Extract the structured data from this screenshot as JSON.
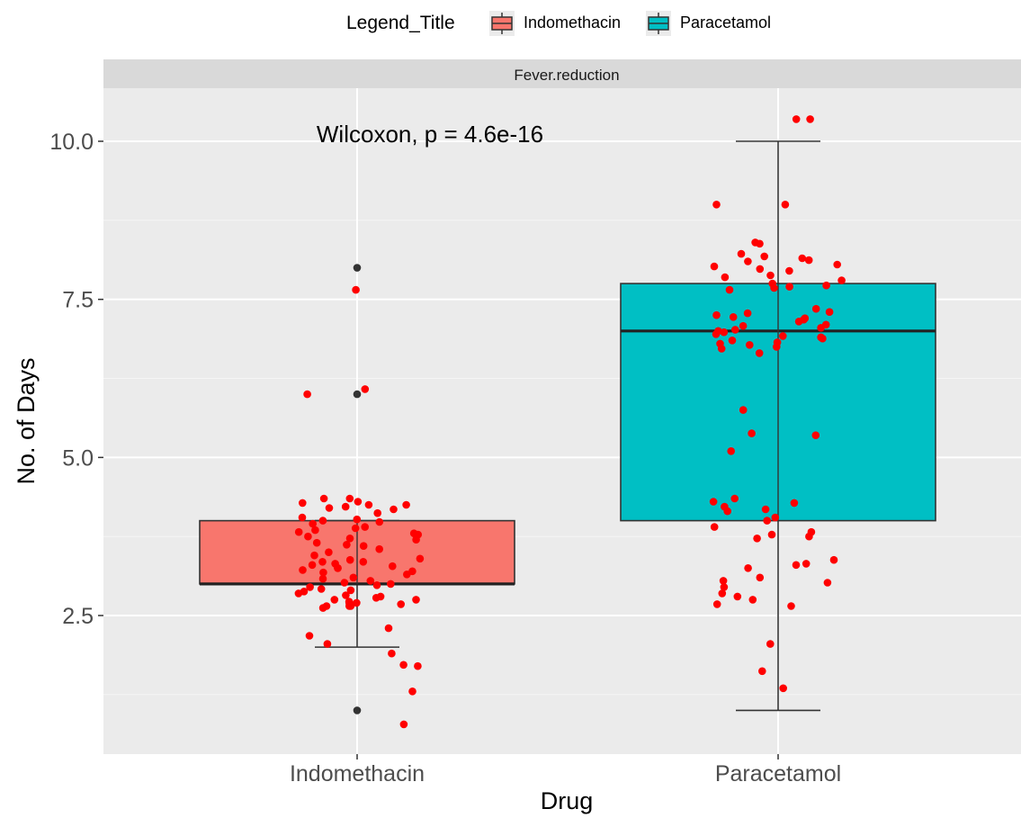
{
  "legend": {
    "title": "Legend_Title",
    "items": [
      {
        "label": "Indomethacin",
        "color": "#F8766D"
      },
      {
        "label": "Paracetamol",
        "color": "#00BFC4"
      }
    ]
  },
  "facet": {
    "label": "Fever.reduction"
  },
  "annotation": {
    "text": "Wilcoxon, p = 4.6e-16"
  },
  "chart_data": {
    "type": "box",
    "title": "",
    "facet": "Fever.reduction",
    "xlabel": "Drug",
    "ylabel": "No. of Days",
    "categories": [
      "Indomethacin",
      "Paracetamol"
    ],
    "ylim": [
      0.6,
      10.8
    ],
    "yticks": [
      2.5,
      5.0,
      7.5,
      10.0
    ],
    "ytick_labels": [
      "2.5",
      "5.0",
      "7.5",
      "10.0"
    ],
    "grid": true,
    "legend_position": "top",
    "colors": {
      "Indomethacin": "#F8766D",
      "Paracetamol": "#00BFC4",
      "points": "#FF0000",
      "outliers": "#333333"
    },
    "boxes": [
      {
        "category": "Indomethacin",
        "min": 2,
        "q1": 3,
        "median": 3,
        "q3": 4,
        "max": 4,
        "outliers": [
          8,
          6,
          1
        ]
      },
      {
        "category": "Paracetamol",
        "min": 1,
        "q1": 4,
        "median": 7,
        "q3": 7.75,
        "max": 10,
        "outliers": []
      }
    ],
    "points": [
      {
        "category": "Indomethacin",
        "values": [
          7.65,
          6.08,
          6.0,
          4.35,
          4.35,
          4.3,
          4.28,
          4.25,
          4.25,
          4.22,
          4.2,
          4.18,
          4.12,
          4.05,
          4.02,
          4.0,
          3.98,
          3.95,
          3.9,
          3.88,
          3.85,
          3.82,
          3.8,
          3.78,
          3.75,
          3.72,
          3.7,
          3.65,
          3.62,
          3.6,
          3.55,
          3.5,
          3.45,
          3.4,
          3.38,
          3.35,
          3.35,
          3.32,
          3.3,
          3.28,
          3.25,
          3.25,
          3.22,
          3.2,
          3.18,
          3.15,
          3.1,
          3.08,
          3.05,
          3.02,
          3.0,
          2.98,
          2.95,
          2.92,
          2.9,
          2.88,
          2.85,
          2.82,
          2.8,
          2.78,
          2.75,
          2.75,
          2.72,
          2.7,
          2.7,
          2.68,
          2.65,
          2.65,
          2.65,
          2.62,
          2.3,
          2.18,
          2.05,
          1.9,
          1.72,
          1.7,
          1.3,
          0.78
        ]
      },
      {
        "category": "Paracetamol",
        "values": [
          10.35,
          10.35,
          9.0,
          9.0,
          8.4,
          8.38,
          8.22,
          8.18,
          8.15,
          8.12,
          8.1,
          8.05,
          8.02,
          7.98,
          7.95,
          7.88,
          7.85,
          7.8,
          7.75,
          7.72,
          7.7,
          7.68,
          7.65,
          7.35,
          7.3,
          7.28,
          7.25,
          7.22,
          7.2,
          7.18,
          7.15,
          7.1,
          7.08,
          7.05,
          7.02,
          7.0,
          6.98,
          6.95,
          6.92,
          6.9,
          6.88,
          6.85,
          6.82,
          6.8,
          6.78,
          6.75,
          6.72,
          6.65,
          5.75,
          5.38,
          5.35,
          5.1,
          4.35,
          4.3,
          4.28,
          4.22,
          4.18,
          4.15,
          4.05,
          4.0,
          3.9,
          3.82,
          3.78,
          3.75,
          3.72,
          3.38,
          3.32,
          3.3,
          3.25,
          3.1,
          3.05,
          3.02,
          2.95,
          2.85,
          2.8,
          2.75,
          2.68,
          2.65,
          2.05,
          1.62,
          1.35
        ]
      }
    ]
  }
}
